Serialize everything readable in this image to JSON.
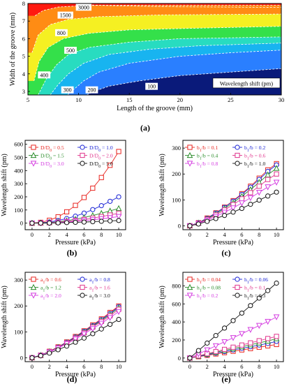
{
  "panels": {
    "a": {
      "label": "(a)"
    },
    "b": {
      "label": "(b)"
    },
    "c": {
      "label": "(c)"
    },
    "d": {
      "label": "(d)"
    },
    "e": {
      "label": "(e)"
    }
  },
  "chart_data": [
    {
      "panel": "a",
      "type": "heatmap",
      "xlabel": "Length of the groove (mm)",
      "ylabel": "Width of the groove (mm)",
      "xlim": [
        5,
        30
      ],
      "ylim": [
        2.8,
        8
      ],
      "xticks": [
        5,
        10,
        15,
        20,
        25,
        30
      ],
      "yticks": [
        3,
        4,
        5,
        6,
        7,
        8
      ],
      "legend_text": "Wavelength shift (pm)",
      "levels": [
        {
          "value": "100",
          "color": "#0a1a7a",
          "label_at": [
            17.2,
            3.25
          ]
        },
        {
          "value": "200",
          "color": "#1e4fd0",
          "label_at": [
            11.3,
            3.05
          ]
        },
        {
          "value": "300",
          "color": "#2a7fff",
          "label_at": [
            8.9,
            3.05
          ]
        },
        {
          "value": "400",
          "color": "#18b4f0",
          "label_at": [
            6.6,
            3.9
          ]
        },
        {
          "value": "500",
          "color": "#28dcc0",
          "label_at": [
            9.2,
            5.3
          ]
        },
        {
          "value": "800",
          "color": "#34e04a",
          "label_at": [
            8.3,
            6.3
          ]
        },
        {
          "value": "1500",
          "color": "#f5f022",
          "label_at": [
            8.7,
            7.3
          ]
        },
        {
          "value": "3000",
          "color": "#ff8c14",
          "label_at": [
            10.5,
            7.75
          ]
        },
        {
          "value": "",
          "color": "#ff1a10",
          "label_at": null
        }
      ],
      "boundaries": [
        {
          "name": "b100",
          "points": [
            [
              10.8,
              2.8
            ],
            [
              11.5,
              3.0
            ],
            [
              13,
              3.3
            ],
            [
              16,
              3.6
            ],
            [
              20,
              3.9
            ],
            [
              25,
              4.1
            ],
            [
              30,
              4.3
            ]
          ]
        },
        {
          "name": "b200",
          "points": [
            [
              8.9,
              2.8
            ],
            [
              9.5,
              3.1
            ],
            [
              10.5,
              3.6
            ],
            [
              12,
              4.1
            ],
            [
              15,
              4.6
            ],
            [
              20,
              5.0
            ],
            [
              25,
              5.2
            ],
            [
              30,
              5.35
            ]
          ]
        },
        {
          "name": "b300",
          "points": [
            [
              7.2,
              2.8
            ],
            [
              8.0,
              3.4
            ],
            [
              9.0,
              4.0
            ],
            [
              10.5,
              4.6
            ],
            [
              13,
              5.1
            ],
            [
              17,
              5.4
            ],
            [
              22,
              5.6
            ],
            [
              30,
              5.75
            ]
          ]
        },
        {
          "name": "b400",
          "points": [
            [
              6.0,
              2.8
            ],
            [
              6.8,
              3.7
            ],
            [
              7.8,
              4.5
            ],
            [
              9,
              5.1
            ],
            [
              11,
              5.5
            ],
            [
              15,
              5.8
            ],
            [
              20,
              6.0
            ],
            [
              30,
              6.1
            ]
          ]
        },
        {
          "name": "b500",
          "points": [
            [
              5.6,
              3.6
            ],
            [
              6.1,
              4.7
            ],
            [
              7.0,
              5.5
            ],
            [
              8.5,
              6.0
            ],
            [
              11,
              6.3
            ],
            [
              15,
              6.5
            ],
            [
              22,
              6.6
            ],
            [
              30,
              6.7
            ]
          ]
        },
        {
          "name": "b800",
          "points": [
            [
              5.4,
              5.2
            ],
            [
              6.0,
              6.2
            ],
            [
              7.2,
              6.8
            ],
            [
              9,
              7.1
            ],
            [
              12,
              7.25
            ],
            [
              18,
              7.35
            ],
            [
              30,
              7.4
            ]
          ]
        },
        {
          "name": "b1500",
          "points": [
            [
              5.7,
              7.3
            ],
            [
              6.5,
              7.6
            ],
            [
              8,
              7.8
            ],
            [
              10,
              7.86
            ],
            [
              12,
              7.9
            ],
            [
              30,
              7.9
            ]
          ]
        },
        {
          "name": "b3000",
          "points": [
            [
              9.6,
              8.0
            ],
            [
              11,
              7.92
            ],
            [
              13,
              7.88
            ],
            [
              18,
              7.82
            ],
            [
              30,
              7.78
            ]
          ]
        }
      ]
    },
    {
      "panel": "b",
      "type": "line",
      "xlabel": "Pressure (kPa)",
      "ylabel": "Wavelength shift (pm)",
      "xlim": [
        -0.8,
        10.8
      ],
      "ylim": [
        -50,
        630
      ],
      "xticks": [
        0,
        2,
        4,
        6,
        8,
        10
      ],
      "yticks": [
        0,
        100,
        200,
        300,
        400,
        500,
        600
      ],
      "x": [
        0,
        1,
        2,
        3,
        4,
        5,
        6,
        7,
        8,
        9,
        10
      ],
      "series": [
        {
          "name": "D/D₀ = 0.5",
          "color": "#e8241f",
          "marker": "square",
          "values": [
            0,
            6,
            22,
            48,
            86,
            135,
            195,
            266,
            347,
            440,
            545
          ]
        },
        {
          "name": "D/D₀ = 1.0",
          "color": "#1a24d6",
          "marker": "circle",
          "values": [
            0,
            3,
            9,
            20,
            35,
            53,
            76,
            103,
            133,
            166,
            200
          ]
        },
        {
          "name": "D/D₀ = 1.5",
          "color": "#2a8c2a",
          "marker": "triangle",
          "values": [
            0,
            2,
            5,
            11,
            19,
            30,
            43,
            58,
            75,
            93,
            112
          ]
        },
        {
          "name": "D/D₀ = 2.0",
          "color": "#e0348c",
          "marker": "square",
          "values": [
            0,
            1,
            3,
            7,
            13,
            20,
            28,
            38,
            50,
            62,
            75
          ]
        },
        {
          "name": "D/D₀ = 3.0",
          "color": "#d43ce0",
          "marker": "tri-down",
          "values": [
            0,
            1,
            2,
            5,
            9,
            13,
            19,
            25,
            33,
            41,
            50
          ]
        },
        {
          "name": "D/D₀ = 5.0",
          "color": "#111111",
          "marker": "circle",
          "values": [
            0,
            0.5,
            1,
            2,
            4,
            6,
            8,
            11,
            14,
            17,
            20
          ]
        }
      ]
    },
    {
      "panel": "c",
      "type": "line",
      "xlabel": "Pressure (kPa)",
      "ylabel": "Wavelength shift (pm)",
      "xlim": [
        -0.8,
        10.8
      ],
      "ylim": [
        -15,
        330
      ],
      "xticks": [
        0,
        2,
        4,
        6,
        8,
        10
      ],
      "yticks": [
        0,
        100,
        200,
        300
      ],
      "x": [
        0,
        1,
        2,
        3,
        4,
        5,
        6,
        7,
        8,
        9,
        10
      ],
      "series": [
        {
          "name": "b₁/b = 0.1",
          "color": "#e8241f",
          "marker": "square",
          "values": [
            0,
            12,
            30,
            50,
            72,
            97,
            124,
            153,
            184,
            216,
            240
          ]
        },
        {
          "name": "b₁/b = 0.2",
          "color": "#1a24d6",
          "marker": "circle",
          "values": [
            0,
            12,
            29,
            49,
            71,
            95,
            121,
            149,
            179,
            210,
            235
          ]
        },
        {
          "name": "b₁/b = 0.4",
          "color": "#2a8c2a",
          "marker": "triangle",
          "values": [
            0,
            11,
            27,
            46,
            67,
            89,
            114,
            140,
            168,
            197,
            222
          ]
        },
        {
          "name": "b₁/b = 0.6",
          "color": "#e0348c",
          "marker": "square",
          "values": [
            0,
            10,
            25,
            42,
            61,
            82,
            104,
            128,
            153,
            179,
            200
          ]
        },
        {
          "name": "b₁/b = 0.8",
          "color": "#d43ce0",
          "marker": "tri-down",
          "values": [
            0,
            9,
            21,
            36,
            52,
            69,
            88,
            108,
            129,
            150,
            168
          ]
        },
        {
          "name": "b₁/b = 1.0",
          "color": "#111111",
          "marker": "circle",
          "values": [
            0,
            7,
            17,
            28,
            40,
            53,
            67,
            83,
            99,
            115,
            130
          ]
        }
      ]
    },
    {
      "panel": "d",
      "type": "line",
      "xlabel": "Pressure (kPa)",
      "ylabel": "Wavelength shift (pm)",
      "xlim": [
        -0.8,
        10.8
      ],
      "ylim": [
        -15,
        330
      ],
      "xticks": [
        0,
        2,
        4,
        6,
        8,
        10
      ],
      "yticks": [
        0,
        100,
        200,
        300
      ],
      "x": [
        0,
        1,
        2,
        3,
        4,
        5,
        6,
        7,
        8,
        9,
        10
      ],
      "series": [
        {
          "name": "a₁/b = 0.6",
          "color": "#e8241f",
          "marker": "square",
          "values": [
            0,
            10,
            25,
            42,
            61,
            82,
            104,
            127,
            150,
            175,
            200
          ]
        },
        {
          "name": "a₁/b = 0.8",
          "color": "#1a24d6",
          "marker": "circle",
          "values": [
            0,
            10,
            24,
            41,
            60,
            80,
            102,
            124,
            147,
            171,
            197
          ]
        },
        {
          "name": "a₁/b = 1.2",
          "color": "#2a8c2a",
          "marker": "triangle",
          "values": [
            0,
            10,
            24,
            40,
            58,
            78,
            99,
            121,
            144,
            167,
            193
          ]
        },
        {
          "name": "a₁/b = 1.6",
          "color": "#e0348c",
          "marker": "square",
          "values": [
            0,
            9,
            23,
            39,
            57,
            76,
            96,
            118,
            140,
            162,
            187
          ]
        },
        {
          "name": "a₁/b = 2.0",
          "color": "#d43ce0",
          "marker": "tri-down",
          "values": [
            0,
            9,
            22,
            37,
            54,
            72,
            92,
            112,
            133,
            155,
            178
          ]
        },
        {
          "name": "a₁/b = 3.0",
          "color": "#111111",
          "marker": "circle",
          "values": [
            0,
            8,
            18,
            31,
            45,
            60,
            76,
            93,
            111,
            129,
            148
          ]
        }
      ]
    },
    {
      "panel": "e",
      "type": "line",
      "xlabel": "Pressure (kPa)",
      "ylabel": "Wavelength shift (pm)",
      "xlim": [
        -0.8,
        10.8
      ],
      "ylim": [
        -40,
        950
      ],
      "xticks": [
        0,
        2,
        4,
        6,
        8,
        10
      ],
      "yticks": [
        0,
        200,
        400,
        600,
        800
      ],
      "x": [
        0,
        1,
        2,
        3,
        4,
        5,
        6,
        7,
        8,
        9,
        10
      ],
      "series": [
        {
          "name": "h₁/b = 0.04",
          "color": "#e8241f",
          "marker": "square",
          "values": [
            0,
            15,
            30,
            45,
            60,
            75,
            90,
            105,
            120,
            135,
            150
          ]
        },
        {
          "name": "h₁/b = 0.06",
          "color": "#1a24d6",
          "marker": "circle",
          "values": [
            0,
            18,
            36,
            54,
            72,
            90,
            108,
            126,
            144,
            162,
            185
          ]
        },
        {
          "name": "h₁/b = 0.08",
          "color": "#2a8c2a",
          "marker": "triangle",
          "values": [
            0,
            21,
            42,
            63,
            84,
            105,
            126,
            147,
            168,
            189,
            215
          ]
        },
        {
          "name": "h₁/b = 0.1",
          "color": "#e0348c",
          "marker": "square",
          "values": [
            0,
            24,
            48,
            72,
            96,
            120,
            144,
            168,
            192,
            216,
            240
          ]
        },
        {
          "name": "h₁/b = 0.2",
          "color": "#d43ce0",
          "marker": "tri-down",
          "values": [
            0,
            45,
            90,
            135,
            180,
            225,
            270,
            315,
            360,
            405,
            455
          ]
        },
        {
          "name": "h₁/b = 0.3",
          "color": "#111111",
          "marker": "circle",
          "values": [
            0,
            83,
            166,
            249,
            332,
            415,
            498,
            581,
            664,
            747,
            830
          ]
        }
      ]
    }
  ]
}
